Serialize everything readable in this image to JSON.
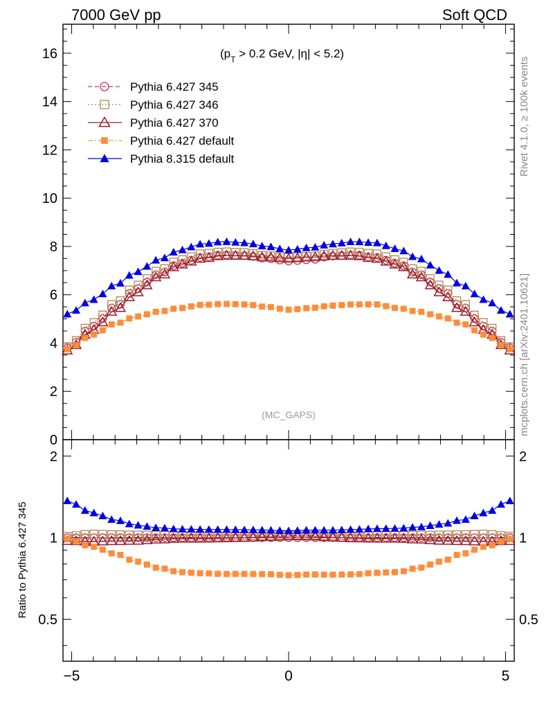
{
  "header": {
    "left": "7000 GeV pp",
    "right": "Soft QCD"
  },
  "side_labels": {
    "rivet": "Rivet 4.1.0, ≥ 100k events",
    "mcplots": "mcplots.cern.ch [arXiv:2401.10621]"
  },
  "cut_label": {
    "main": "(p",
    "sub": "T",
    "rest": " > 0.2 GeV, |η| < 5.2)"
  },
  "analysis_tag": "(MC_GAPS)",
  "ratio_ylabel": "Ratio to Pythia 6.427 345",
  "chart_data": {
    "type": "scatter",
    "x_range": [
      -5.2,
      5.2
    ],
    "top": {
      "ylim": [
        0,
        17.2
      ],
      "yticks": [
        0,
        2,
        4,
        6,
        8,
        10,
        12,
        14,
        16
      ]
    },
    "ratio": {
      "ylim": [
        0.35,
        2.3
      ],
      "yticks_left": [
        0.5,
        1,
        2
      ],
      "yticks_right": [
        0.5,
        1,
        2
      ],
      "ytick_labels": [
        "0.5",
        "1",
        "2"
      ],
      "log": true
    },
    "xticks": [
      -5,
      0,
      5
    ],
    "xtick_labels": [
      "−5",
      "0",
      "5"
    ],
    "legend": [
      "Pythia 6.427 345",
      "Pythia 6.427 346",
      "Pythia 6.427 370",
      "Pythia 6.427 default",
      "Pythia 8.315 default"
    ],
    "series": [
      {
        "name": "Pythia 6.427 345",
        "color": "#c0365a",
        "marker": "circle-open",
        "line": "dashed",
        "anchors": [
          [
            -5.1,
            3.8
          ],
          [
            -4.5,
            4.7
          ],
          [
            -4.0,
            5.5
          ],
          [
            -3.5,
            6.25
          ],
          [
            -3.0,
            6.85
          ],
          [
            -2.5,
            7.3
          ],
          [
            -2.0,
            7.55
          ],
          [
            -1.5,
            7.65
          ],
          [
            -1.0,
            7.62
          ],
          [
            -0.5,
            7.5
          ],
          [
            0.0,
            7.4
          ],
          [
            0.5,
            7.45
          ],
          [
            1.0,
            7.6
          ],
          [
            1.5,
            7.65
          ],
          [
            2.0,
            7.55
          ],
          [
            2.5,
            7.3
          ],
          [
            3.0,
            6.85
          ],
          [
            3.5,
            6.25
          ],
          [
            4.0,
            5.5
          ],
          [
            4.5,
            4.7
          ],
          [
            5.1,
            3.8
          ]
        ]
      },
      {
        "name": "Pythia 6.427 346",
        "color": "#b08850",
        "marker": "square-open",
        "line": "dotted",
        "anchors": [
          [
            -5.1,
            3.85
          ],
          [
            -4.5,
            4.85
          ],
          [
            -4.0,
            5.65
          ],
          [
            -3.5,
            6.4
          ],
          [
            -3.0,
            7.0
          ],
          [
            -2.5,
            7.45
          ],
          [
            -2.0,
            7.7
          ],
          [
            -1.5,
            7.78
          ],
          [
            -1.0,
            7.75
          ],
          [
            -0.5,
            7.62
          ],
          [
            0.0,
            7.55
          ],
          [
            0.5,
            7.6
          ],
          [
            1.0,
            7.72
          ],
          [
            1.5,
            7.78
          ],
          [
            2.0,
            7.7
          ],
          [
            2.5,
            7.45
          ],
          [
            3.0,
            7.0
          ],
          [
            3.5,
            6.4
          ],
          [
            4.0,
            5.65
          ],
          [
            4.5,
            4.85
          ],
          [
            5.1,
            3.85
          ]
        ]
      },
      {
        "name": "Pythia 6.427 370",
        "color": "#9a1a2a",
        "marker": "triangle-open",
        "line": "solid",
        "anchors": [
          [
            -5.1,
            3.7
          ],
          [
            -4.5,
            4.55
          ],
          [
            -4.0,
            5.35
          ],
          [
            -3.5,
            6.1
          ],
          [
            -3.0,
            6.75
          ],
          [
            -2.5,
            7.25
          ],
          [
            -2.0,
            7.5
          ],
          [
            -1.5,
            7.62
          ],
          [
            -1.0,
            7.62
          ],
          [
            -0.5,
            7.55
          ],
          [
            0.0,
            7.5
          ],
          [
            0.5,
            7.55
          ],
          [
            1.0,
            7.62
          ],
          [
            1.5,
            7.62
          ],
          [
            2.0,
            7.5
          ],
          [
            2.5,
            7.25
          ],
          [
            3.0,
            6.75
          ],
          [
            3.5,
            6.1
          ],
          [
            4.0,
            5.35
          ],
          [
            4.5,
            4.55
          ],
          [
            5.1,
            3.7
          ]
        ]
      },
      {
        "name": "Pythia 6.427 default",
        "color": "#ff8c3a",
        "marker": "square-filled",
        "line": "dashdot",
        "anchors": [
          [
            -5.1,
            3.75
          ],
          [
            -4.5,
            4.35
          ],
          [
            -4.0,
            4.8
          ],
          [
            -3.5,
            5.1
          ],
          [
            -3.0,
            5.3
          ],
          [
            -2.5,
            5.45
          ],
          [
            -2.0,
            5.58
          ],
          [
            -1.5,
            5.62
          ],
          [
            -1.0,
            5.6
          ],
          [
            -0.5,
            5.5
          ],
          [
            0.0,
            5.38
          ],
          [
            0.5,
            5.45
          ],
          [
            1.0,
            5.55
          ],
          [
            1.5,
            5.6
          ],
          [
            2.0,
            5.6
          ],
          [
            2.5,
            5.45
          ],
          [
            3.0,
            5.3
          ],
          [
            3.5,
            5.1
          ],
          [
            4.0,
            4.8
          ],
          [
            4.5,
            4.35
          ],
          [
            5.1,
            3.75
          ]
        ]
      },
      {
        "name": "Pythia 8.315 default",
        "color": "#0000e0",
        "marker": "triangle-filled",
        "line": "solid",
        "anchors": [
          [
            -5.1,
            5.2
          ],
          [
            -4.5,
            5.8
          ],
          [
            -4.0,
            6.4
          ],
          [
            -3.5,
            6.95
          ],
          [
            -3.0,
            7.45
          ],
          [
            -2.5,
            7.85
          ],
          [
            -2.0,
            8.1
          ],
          [
            -1.5,
            8.2
          ],
          [
            -1.0,
            8.15
          ],
          [
            -0.5,
            8.0
          ],
          [
            0.0,
            7.85
          ],
          [
            0.5,
            7.95
          ],
          [
            1.0,
            8.1
          ],
          [
            1.5,
            8.2
          ],
          [
            2.0,
            8.15
          ],
          [
            2.5,
            7.9
          ],
          [
            3.0,
            7.5
          ],
          [
            3.5,
            7.0
          ],
          [
            4.0,
            6.4
          ],
          [
            4.5,
            5.8
          ],
          [
            5.1,
            5.2
          ]
        ]
      }
    ]
  }
}
